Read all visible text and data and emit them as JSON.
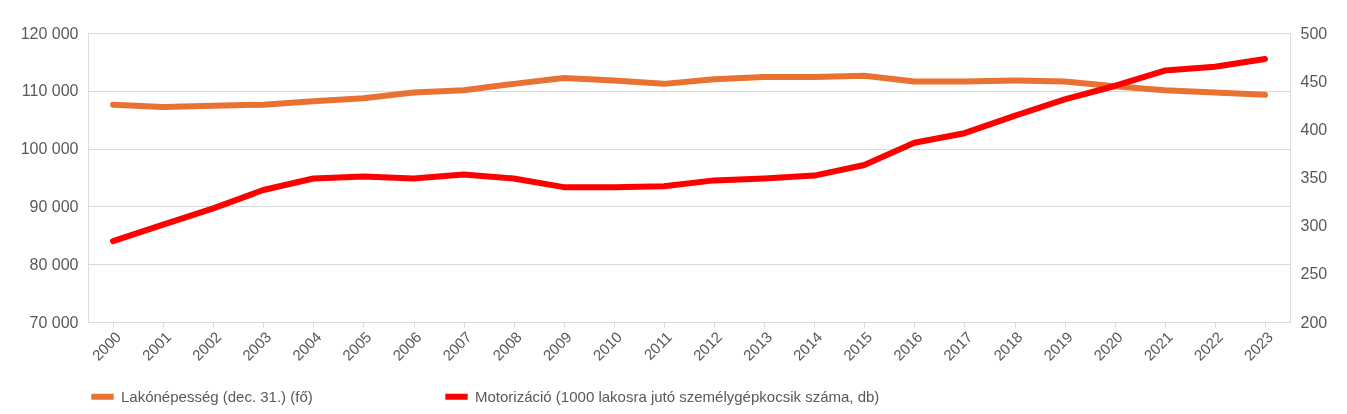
{
  "chart_data": {
    "type": "line",
    "categories": [
      "2000",
      "2001",
      "2002",
      "2003",
      "2004",
      "2005",
      "2006",
      "2007",
      "2008",
      "2009",
      "2010",
      "2011",
      "2012",
      "2013",
      "2014",
      "2015",
      "2016",
      "2017",
      "2018",
      "2019",
      "2020",
      "2021",
      "2022",
      "2023"
    ],
    "series": [
      {
        "name": "Lakónépesség (dec. 31.) (fő)",
        "color": "#e97132",
        "values": [
          107600,
          107200,
          107400,
          107600,
          108200,
          108700,
          109700,
          110100,
          111200,
          112200,
          111800,
          111200,
          112000,
          112400,
          112400,
          112600,
          111600,
          111600,
          111800,
          111600,
          110800,
          110100,
          109700,
          109300
        ]
      },
      {
        "name": "Motorizáció (1000 lakosra jutó személygépkocsik száma, db)",
        "color": "#ff0000",
        "axis": "y2",
        "values": [
          284,
          301,
          318,
          337,
          349,
          351,
          349,
          353,
          349,
          340,
          340,
          341,
          347,
          349,
          352,
          363,
          386,
          396,
          414,
          431,
          445,
          461,
          465,
          473
        ]
      }
    ],
    "ylim": [
      70000,
      120000
    ],
    "yticks": [
      {
        "value": 70000,
        "label": "70 000"
      },
      {
        "value": 80000,
        "label": "80 000"
      },
      {
        "value": 90000,
        "label": "90 000"
      },
      {
        "value": 100000,
        "label": "100 000"
      },
      {
        "value": 110000,
        "label": "110 000"
      },
      {
        "value": 120000,
        "label": "120 000"
      }
    ],
    "y2lim": [
      200,
      500
    ],
    "y2ticks": [
      200,
      250,
      300,
      350,
      400,
      450,
      500
    ],
    "grid": "y",
    "legend": "bottom",
    "marker": "none",
    "line_style": "solid"
  }
}
